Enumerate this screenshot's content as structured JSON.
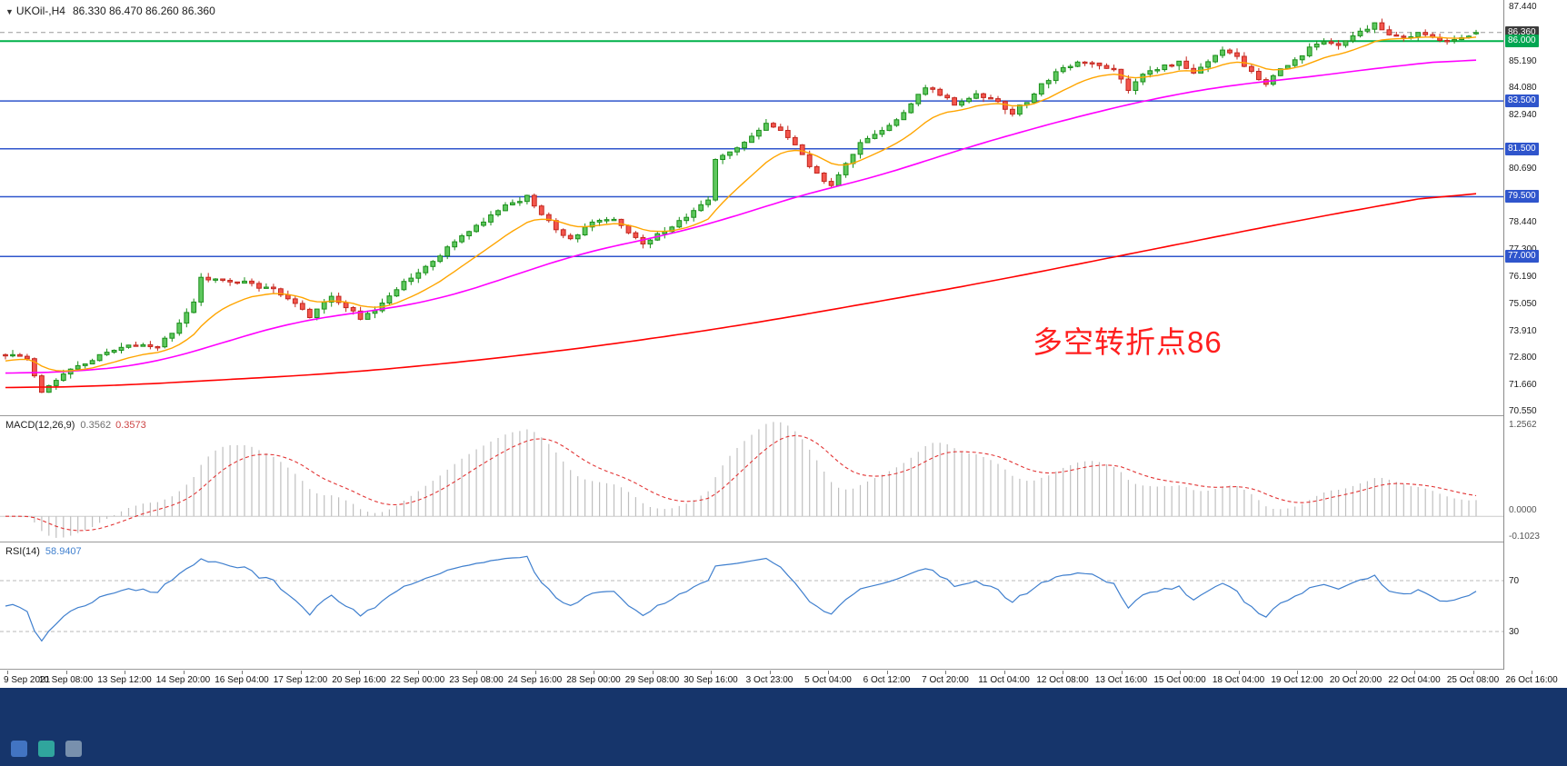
{
  "window": {
    "dropdown_icon": "▼",
    "symbol_period": "UKOil-,H4",
    "ohlc_text": "86.330 86.470 86.260 86.360"
  },
  "annotation": {
    "text": "多空转折点86",
    "color": "#ff1f1f"
  },
  "indicators": {
    "macd": {
      "label": "MACD(12,26,9)",
      "value_main": "0.3562",
      "value_signal": "0.3573"
    },
    "rsi": {
      "label": "RSI(14)",
      "value": "58.9407"
    }
  },
  "taskbar": {
    "color": "#16356b",
    "icons": [
      {
        "name": "taskbar-icon-1",
        "color": "#4a7fd1"
      },
      {
        "name": "taskbar-icon-2",
        "color": "#35b9a6"
      },
      {
        "name": "taskbar-icon-3",
        "color": "#8aa0b8"
      }
    ]
  },
  "chart_data": {
    "type": "candlestick",
    "symbol": "UKOil-",
    "timeframe": "H4",
    "title": "UKOil-,H4",
    "price_range": [
      70.33,
      87.72
    ],
    "candle_count": 204,
    "last_candle": {
      "open": 86.33,
      "high": 86.47,
      "low": 86.26,
      "close": 86.36
    },
    "close_anchors": [
      [
        0,
        72.9
      ],
      [
        3,
        72.7
      ],
      [
        5,
        71.3
      ],
      [
        7,
        71.9
      ],
      [
        10,
        72.4
      ],
      [
        14,
        73.0
      ],
      [
        18,
        73.3
      ],
      [
        21,
        73.2
      ],
      [
        24,
        74.2
      ],
      [
        25,
        74.6
      ],
      [
        26,
        75.1
      ],
      [
        27,
        76.1
      ],
      [
        29,
        76.0
      ],
      [
        33,
        75.9
      ],
      [
        37,
        75.6
      ],
      [
        40,
        75.0
      ],
      [
        42,
        74.5
      ],
      [
        45,
        75.3
      ],
      [
        47,
        74.9
      ],
      [
        49,
        74.4
      ],
      [
        52,
        75.0
      ],
      [
        55,
        75.9
      ],
      [
        57,
        76.3
      ],
      [
        60,
        77.1
      ],
      [
        63,
        77.9
      ],
      [
        66,
        78.5
      ],
      [
        69,
        79.1
      ],
      [
        72,
        79.5
      ],
      [
        74,
        78.7
      ],
      [
        76,
        78.2
      ],
      [
        78,
        77.7
      ],
      [
        81,
        78.4
      ],
      [
        84,
        78.5
      ],
      [
        86,
        78.0
      ],
      [
        88,
        77.5
      ],
      [
        91,
        78.1
      ],
      [
        94,
        78.7
      ],
      [
        96,
        79.1
      ],
      [
        97,
        79.3
      ],
      [
        98,
        81.1
      ],
      [
        100,
        81.4
      ],
      [
        103,
        82.0
      ],
      [
        105,
        82.5
      ],
      [
        107,
        82.2
      ],
      [
        109,
        81.6
      ],
      [
        111,
        80.8
      ],
      [
        113,
        80.1
      ],
      [
        114,
        80.0
      ],
      [
        116,
        80.9
      ],
      [
        118,
        81.7
      ],
      [
        121,
        82.2
      ],
      [
        123,
        82.7
      ],
      [
        125,
        83.4
      ],
      [
        127,
        84.1
      ],
      [
        129,
        83.8
      ],
      [
        131,
        83.4
      ],
      [
        134,
        83.8
      ],
      [
        136,
        83.6
      ],
      [
        139,
        83.0
      ],
      [
        141,
        83.5
      ],
      [
        143,
        84.2
      ],
      [
        146,
        84.9
      ],
      [
        148,
        85.1
      ],
      [
        151,
        85.0
      ],
      [
        153,
        84.8
      ],
      [
        155,
        84.0
      ],
      [
        157,
        84.6
      ],
      [
        160,
        85.0
      ],
      [
        162,
        85.1
      ],
      [
        164,
        84.7
      ],
      [
        166,
        85.2
      ],
      [
        168,
        85.7
      ],
      [
        170,
        85.3
      ],
      [
        172,
        84.7
      ],
      [
        174,
        84.2
      ],
      [
        176,
        84.8
      ],
      [
        178,
        85.2
      ],
      [
        180,
        85.7
      ],
      [
        182,
        86.0
      ],
      [
        184,
        85.8
      ],
      [
        186,
        86.2
      ],
      [
        189,
        86.7
      ],
      [
        191,
        86.3
      ],
      [
        193,
        86.1
      ],
      [
        195,
        86.4
      ],
      [
        197,
        86.2
      ],
      [
        199,
        86.0
      ],
      [
        201,
        86.2
      ],
      [
        203,
        86.36
      ]
    ],
    "colors": {
      "up_fill": "#5ec75e",
      "up_stroke": "#1a8f1a",
      "down_fill": "#f3564d",
      "down_stroke": "#c3271f"
    },
    "horizontal_lines": [
      {
        "price": 86.36,
        "color": "#9a9a9a",
        "style": "dashed",
        "width": 1
      },
      {
        "price": 86.0,
        "color": "#00b14a",
        "style": "solid",
        "width": 2
      },
      {
        "price": 83.5,
        "color": "#2f55cc",
        "style": "solid",
        "width": 1.5
      },
      {
        "price": 81.5,
        "color": "#2f55cc",
        "style": "solid",
        "width": 1.5
      },
      {
        "price": 79.5,
        "color": "#2f55cc",
        "style": "solid",
        "width": 1.5
      },
      {
        "price": 77.0,
        "color": "#2f55cc",
        "style": "solid",
        "width": 1.5
      }
    ],
    "moving_averages": {
      "fast": {
        "type": "ema",
        "period": 13,
        "seed": 72.6,
        "color": "#ffa500"
      },
      "mid": {
        "color": "#ff00ff",
        "anchors": [
          [
            0,
            72.1
          ],
          [
            10,
            72.2
          ],
          [
            20,
            72.5
          ],
          [
            30,
            73.4
          ],
          [
            40,
            74.3
          ],
          [
            50,
            74.7
          ],
          [
            60,
            75.2
          ],
          [
            70,
            76.2
          ],
          [
            80,
            77.2
          ],
          [
            90,
            77.8
          ],
          [
            100,
            78.6
          ],
          [
            110,
            79.6
          ],
          [
            120,
            80.3
          ],
          [
            130,
            81.3
          ],
          [
            140,
            82.2
          ],
          [
            150,
            83.0
          ],
          [
            160,
            83.7
          ],
          [
            170,
            84.2
          ],
          [
            180,
            84.5
          ],
          [
            190,
            84.9
          ],
          [
            203,
            85.3
          ]
        ]
      },
      "slow": {
        "color": "#ff0000",
        "anchors": [
          [
            0,
            71.5
          ],
          [
            15,
            71.6
          ],
          [
            30,
            71.85
          ],
          [
            45,
            72.1
          ],
          [
            60,
            72.5
          ],
          [
            75,
            73.0
          ],
          [
            90,
            73.6
          ],
          [
            105,
            74.3
          ],
          [
            120,
            75.1
          ],
          [
            135,
            75.9
          ],
          [
            150,
            76.8
          ],
          [
            165,
            77.7
          ],
          [
            180,
            78.6
          ],
          [
            195,
            79.4
          ],
          [
            203,
            79.85
          ]
        ]
      }
    },
    "macd": {
      "fast": 12,
      "slow": 26,
      "signal": 9,
      "current_main": 0.3562,
      "current_signal": 0.3573,
      "histogram_color": "#bfbfbf",
      "signal_color": "#e23535",
      "axis": {
        "top": "1.2562",
        "zero": "0.0000",
        "bottom": "-0.1023"
      }
    },
    "rsi": {
      "period": 14,
      "current": 58.9407,
      "color": "#3f7fce",
      "levels": [
        70,
        30
      ],
      "range": [
        0,
        100
      ]
    },
    "price_axis_ticks": [
      "87.440",
      "85.190",
      "84.080",
      "82.940",
      "80.690",
      "78.440",
      "77.300",
      "76.190",
      "75.050",
      "73.910",
      "72.800",
      "71.660",
      "70.550"
    ],
    "price_badges": [
      {
        "value": "86.360",
        "price": 86.36,
        "bg": "#3c3c3c"
      },
      {
        "value": "86.000",
        "price": 86.0,
        "bg": "#00a651"
      },
      {
        "value": "83.500",
        "price": 83.5,
        "bg": "#2f55cc"
      },
      {
        "value": "81.500",
        "price": 81.5,
        "bg": "#2f55cc"
      },
      {
        "value": "79.500",
        "price": 79.5,
        "bg": "#2f55cc"
      },
      {
        "value": "77.000",
        "price": 77.0,
        "bg": "#2f55cc"
      }
    ],
    "time_labels": [
      "9 Sep 2021",
      "10 Sep 08:00",
      "13 Sep 12:00",
      "14 Sep 20:00",
      "16 Sep 04:00",
      "17 Sep 12:00",
      "20 Sep 16:00",
      "22 Sep 00:00",
      "23 Sep 08:00",
      "24 Sep 16:00",
      "28 Sep 00:00",
      "29 Sep 08:00",
      "30 Sep 16:00",
      "3 Oct 23:00",
      "5 Oct 04:00",
      "6 Oct 12:00",
      "7 Oct 20:00",
      "11 Oct 04:00",
      "12 Oct 08:00",
      "13 Oct 16:00",
      "15 Oct 00:00",
      "18 Oct 04:00",
      "19 Oct 12:00",
      "20 Oct 20:00",
      "22 Oct 04:00",
      "25 Oct 08:00",
      "26 Oct 16:00"
    ]
  }
}
